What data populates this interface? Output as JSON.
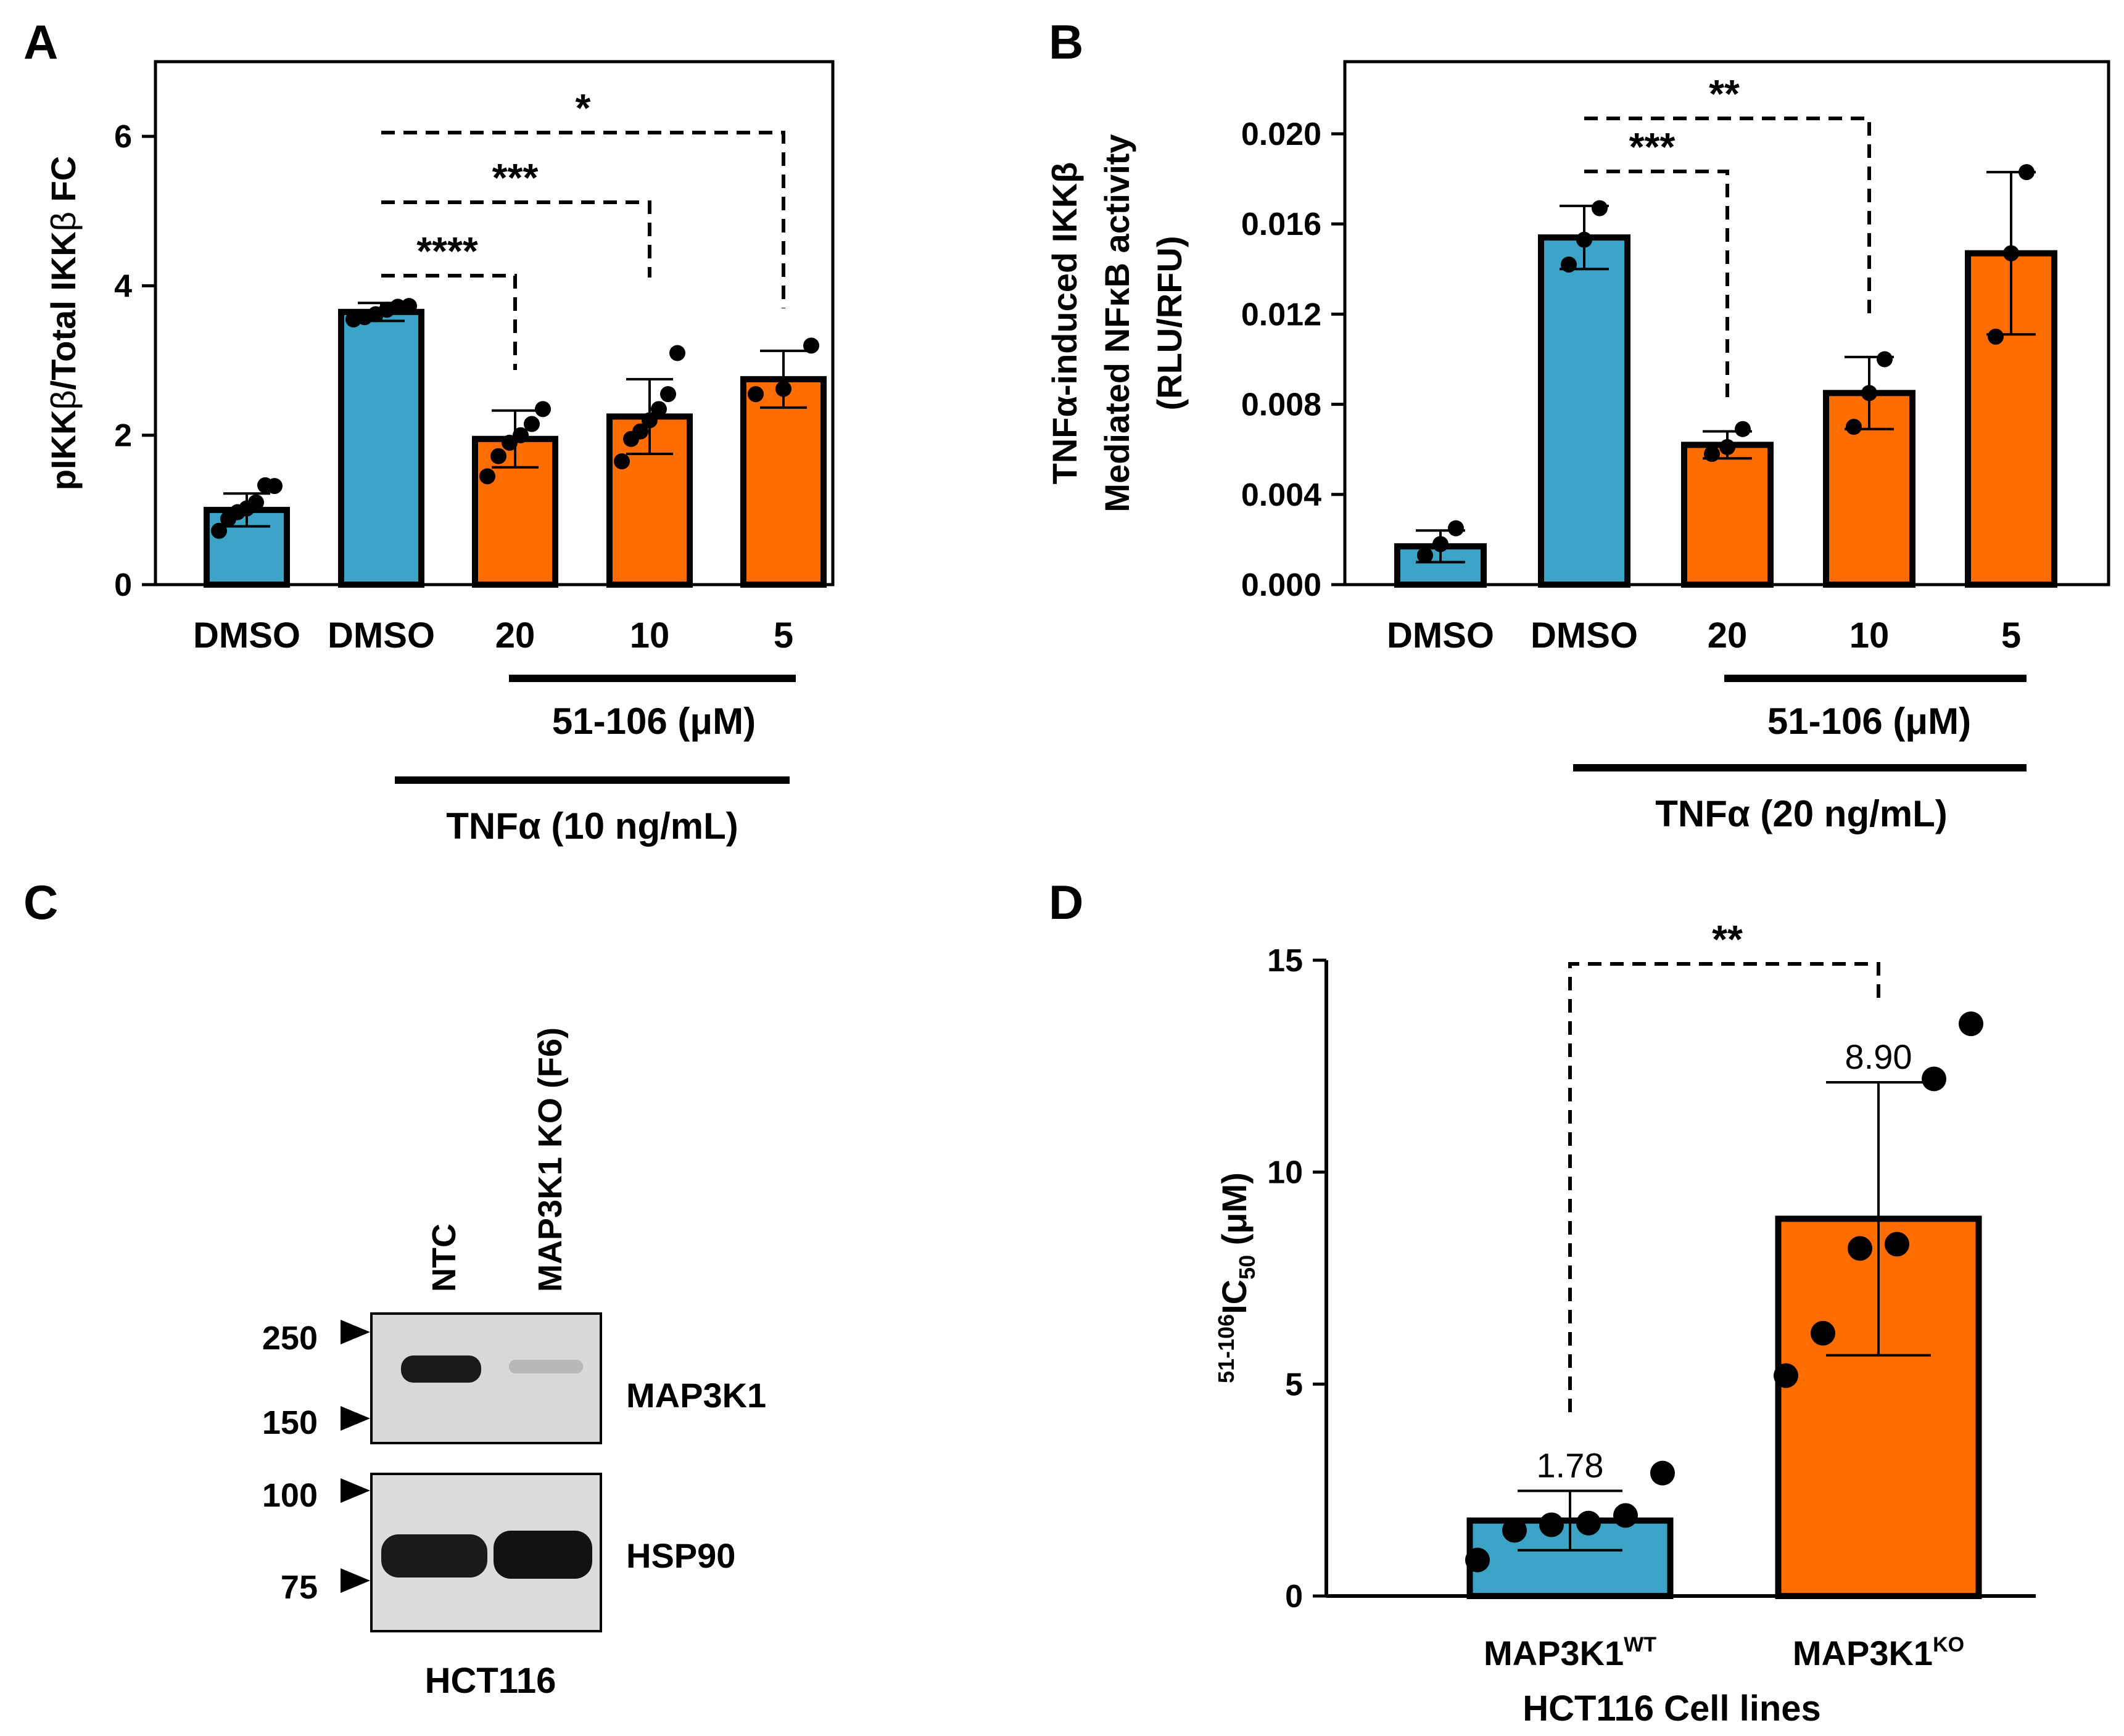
{
  "colors": {
    "blue": "#3aa3c6",
    "orange": "#ff6d00",
    "gel_bg": "#dcdcdc",
    "band": "#1a1a1a"
  },
  "chart_data": [
    {
      "panel": "A",
      "type": "bar",
      "ylabel_parts": [
        "pIKK",
        "β",
        "/Total IKK",
        "β",
        " FC"
      ],
      "ylim": [
        0,
        7
      ],
      "yticks": [
        "0",
        "2",
        "4",
        "6"
      ],
      "categories": [
        "DMSO",
        "DMSO",
        "20",
        "10",
        "5"
      ],
      "values": [
        1.0,
        3.65,
        1.95,
        2.25,
        2.75
      ],
      "errors": [
        0.22,
        0.12,
        0.38,
        0.5,
        0.38
      ],
      "colors": [
        "blue",
        "blue",
        "orange",
        "orange",
        "orange"
      ],
      "points": [
        [
          0.72,
          0.88,
          0.97,
          1.02,
          1.1,
          1.33,
          1.32
        ],
        [
          3.55,
          3.58,
          3.62,
          3.68,
          3.72,
          3.73
        ],
        [
          1.45,
          1.72,
          1.9,
          2.0,
          2.15,
          2.35
        ],
        [
          1.65,
          1.95,
          2.05,
          2.2,
          2.35,
          2.55,
          3.1
        ],
        [
          2.55,
          2.62,
          3.2
        ]
      ],
      "comparisons": [
        {
          "from": 1,
          "to": 2,
          "label": "****"
        },
        {
          "from": 1,
          "to": 3,
          "label": "***"
        },
        {
          "from": 1,
          "to": 4,
          "label": "*"
        }
      ],
      "treatment_label": "51-106 (μM)",
      "stimulus_label": "TNFα (10 ng/mL)"
    },
    {
      "panel": "B",
      "type": "bar",
      "ylabel_lines": [
        "TNFα-induced IKKβ",
        "Mediated NFκB activity",
        "(RLU/RFU)"
      ],
      "ylim": [
        0,
        0.0232
      ],
      "yticks": [
        "0.000",
        "0.004",
        "0.008",
        "0.012",
        "0.016",
        "0.020"
      ],
      "categories": [
        "DMSO",
        "DMSO",
        "20",
        "10",
        "5"
      ],
      "values": [
        0.0017,
        0.0154,
        0.0062,
        0.0085,
        0.0147
      ],
      "errors": [
        0.0007,
        0.0014,
        0.0006,
        0.0016,
        0.0036
      ],
      "colors": [
        "blue",
        "blue",
        "orange",
        "orange",
        "orange"
      ],
      "points": [
        [
          0.0013,
          0.0018,
          0.0025
        ],
        [
          0.0142,
          0.0153,
          0.0167
        ],
        [
          0.0058,
          0.0061,
          0.0069
        ],
        [
          0.007,
          0.0085,
          0.01
        ],
        [
          0.011,
          0.0147,
          0.0183
        ]
      ],
      "comparisons": [
        {
          "from": 1,
          "to": 2,
          "label": "***"
        },
        {
          "from": 1,
          "to": 3,
          "label": "**"
        }
      ],
      "treatment_label": "51-106 (μM)",
      "stimulus_label": "TNFα (20 ng/mL)"
    },
    {
      "panel": "D",
      "type": "bar",
      "ylabel_sup": "51-106",
      "ylabel_main": "IC",
      "ylabel_sub": "50",
      "ylabel_unit": " (μM)",
      "ylim": [
        0,
        15
      ],
      "yticks": [
        "0",
        "5",
        "10",
        "15"
      ],
      "categories": [
        "MAP3K1",
        "MAP3K1"
      ],
      "category_sups": [
        "WT",
        "KO"
      ],
      "values": [
        1.78,
        8.9
      ],
      "value_labels": [
        "1.78",
        "8.90"
      ],
      "errors": [
        0.7,
        3.22
      ],
      "colors": [
        "blue",
        "orange"
      ],
      "points": [
        [
          0.85,
          1.55,
          1.68,
          1.72,
          1.9,
          2.9
        ],
        [
          5.2,
          6.2,
          8.2,
          8.3,
          12.2,
          13.5
        ]
      ],
      "comparisons": [
        {
          "from": 0,
          "to": 1,
          "label": "**"
        }
      ],
      "xlabel": "HCT116 Cell lines"
    }
  ],
  "panel_letters": [
    "A",
    "B",
    "C",
    "D"
  ],
  "blot": {
    "lanes": [
      "NTC",
      "MAP3K1 KO (F6)"
    ],
    "markers": [
      "250",
      "150",
      "100",
      "75"
    ],
    "proteins": [
      "MAP3K1",
      "HSP90"
    ],
    "cell_line": "HCT116"
  }
}
